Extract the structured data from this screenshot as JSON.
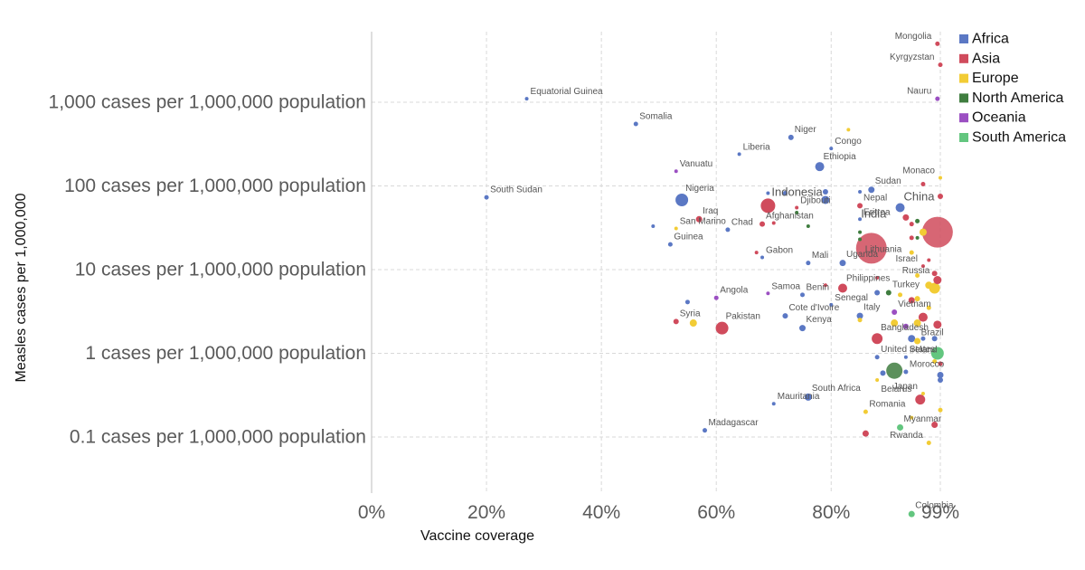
{
  "chart_data": {
    "type": "scatter",
    "title": "",
    "xlabel": "Vaccine coverage",
    "ylabel": "Measles cases per 1,000,000",
    "x_scale": "linear",
    "y_scale": "log",
    "xlim": [
      0,
      99
    ],
    "ylim": [
      0.006,
      6000
    ],
    "grid": true,
    "legend_position": "top-right",
    "x_ticks": [
      {
        "value": 0,
        "label": "0%"
      },
      {
        "value": 20,
        "label": "20%"
      },
      {
        "value": 40,
        "label": "40%"
      },
      {
        "value": 60,
        "label": "60%"
      },
      {
        "value": 80,
        "label": "80%"
      },
      {
        "value": 99,
        "label": "99%"
      }
    ],
    "y_ticks": [
      {
        "value": 0.1,
        "label": "0.1 cases per 1,000,000 population"
      },
      {
        "value": 1,
        "label": "1 cases per 1,000,000 population"
      },
      {
        "value": 10,
        "label": "10 cases per 1,000,000 population"
      },
      {
        "value": 100,
        "label": "100 cases per 1,000,000 population"
      },
      {
        "value": 1000,
        "label": "1,000 cases per 1,000,000 population"
      }
    ],
    "legend": [
      {
        "name": "Africa",
        "color": "#5b78c4"
      },
      {
        "name": "Asia",
        "color": "#d04b5c"
      },
      {
        "name": "Europe",
        "color": "#f2cc35"
      },
      {
        "name": "North America",
        "color": "#3f7d3f"
      },
      {
        "name": "Oceania",
        "color": "#9b4fc2"
      },
      {
        "name": "South America",
        "color": "#63c67f"
      }
    ],
    "points": [
      {
        "x": 98.5,
        "y": 5000,
        "r": 2.5,
        "region": "Asia",
        "label": "Mongolia"
      },
      {
        "x": 99,
        "y": 2800,
        "r": 2.5,
        "region": "Asia",
        "label": "Kyrgyzstan"
      },
      {
        "x": 98.5,
        "y": 1100,
        "r": 2.5,
        "region": "Oceania",
        "label": "Nauru"
      },
      {
        "x": 27,
        "y": 1100,
        "r": 2,
        "region": "Africa",
        "label": "Equatorial Guinea"
      },
      {
        "x": 46,
        "y": 550,
        "r": 2.5,
        "region": "Africa",
        "label": "Somalia"
      },
      {
        "x": 73,
        "y": 380,
        "r": 3,
        "region": "Africa",
        "label": "Niger"
      },
      {
        "x": 83,
        "y": 470,
        "r": 2,
        "region": "Europe",
        "label": ""
      },
      {
        "x": 80,
        "y": 280,
        "r": 2,
        "region": "Africa",
        "label": "Congo"
      },
      {
        "x": 64,
        "y": 240,
        "r": 2,
        "region": "Africa",
        "label": "Liberia"
      },
      {
        "x": 78,
        "y": 170,
        "r": 5,
        "region": "Africa",
        "label": "Ethiopia"
      },
      {
        "x": 53,
        "y": 150,
        "r": 2,
        "region": "Oceania",
        "label": "Vanuatu"
      },
      {
        "x": 99,
        "y": 125,
        "r": 2,
        "region": "Europe",
        "label": "Monaco"
      },
      {
        "x": 96,
        "y": 105,
        "r": 2.5,
        "region": "Asia",
        "label": ""
      },
      {
        "x": 87,
        "y": 90,
        "r": 3.5,
        "region": "Africa",
        "label": "Sudan"
      },
      {
        "x": 85,
        "y": 85,
        "r": 2,
        "region": "Africa",
        "label": ""
      },
      {
        "x": 99,
        "y": 75,
        "r": 3,
        "region": "Asia",
        "label": ""
      },
      {
        "x": 20,
        "y": 73,
        "r": 2.5,
        "region": "Africa",
        "label": "South Sudan"
      },
      {
        "x": 54,
        "y": 68,
        "r": 7,
        "region": "Africa",
        "label": "Nigeria"
      },
      {
        "x": 69,
        "y": 82,
        "r": 2,
        "region": "Africa",
        "label": ""
      },
      {
        "x": 69,
        "y": 58,
        "r": 8,
        "region": "Asia",
        "label": "Indonesia"
      },
      {
        "x": 72,
        "y": 82,
        "r": 2.5,
        "region": "Africa",
        "label": ""
      },
      {
        "x": 79,
        "y": 85,
        "r": 3,
        "region": "Africa",
        "label": ""
      },
      {
        "x": 79,
        "y": 68,
        "r": 4.5,
        "region": "Africa",
        "label": ""
      },
      {
        "x": 74,
        "y": 55,
        "r": 2,
        "region": "Asia",
        "label": "Djibouti"
      },
      {
        "x": 74,
        "y": 48,
        "r": 2,
        "region": "North America",
        "label": ""
      },
      {
        "x": 85,
        "y": 58,
        "r": 3,
        "region": "Asia",
        "label": "Nepal"
      },
      {
        "x": 92,
        "y": 55,
        "r": 5,
        "region": "Africa",
        "label": "China"
      },
      {
        "x": 98.5,
        "y": 28,
        "r": 17,
        "region": "Asia",
        "label": ""
      },
      {
        "x": 96,
        "y": 28,
        "r": 4,
        "region": "Europe",
        "label": ""
      },
      {
        "x": 93,
        "y": 42,
        "r": 3.5,
        "region": "Asia",
        "label": ""
      },
      {
        "x": 95,
        "y": 38,
        "r": 2.5,
        "region": "North America",
        "label": ""
      },
      {
        "x": 94,
        "y": 35,
        "r": 2.5,
        "region": "Asia",
        "label": ""
      },
      {
        "x": 85,
        "y": 40,
        "r": 2,
        "region": "Africa",
        "label": "Eritrea"
      },
      {
        "x": 57,
        "y": 40,
        "r": 3.5,
        "region": "Asia",
        "label": "Iraq"
      },
      {
        "x": 68,
        "y": 35,
        "r": 3,
        "region": "Asia",
        "label": "Afghanistan"
      },
      {
        "x": 70,
        "y": 36,
        "r": 2,
        "region": "Asia",
        "label": ""
      },
      {
        "x": 49,
        "y": 33,
        "r": 2,
        "region": "Africa",
        "label": ""
      },
      {
        "x": 53,
        "y": 31,
        "r": 2,
        "region": "Europe",
        "label": "San Marino"
      },
      {
        "x": 62,
        "y": 30,
        "r": 2.5,
        "region": "Africa",
        "label": "Chad"
      },
      {
        "x": 76,
        "y": 33,
        "r": 2,
        "region": "North America",
        "label": ""
      },
      {
        "x": 85,
        "y": 28,
        "r": 2,
        "region": "North America",
        "label": ""
      },
      {
        "x": 87,
        "y": 18,
        "r": 17,
        "region": "Asia",
        "label": ""
      },
      {
        "x": 94,
        "y": 24,
        "r": 2.5,
        "region": "Asia",
        "label": ""
      },
      {
        "x": 95,
        "y": 24,
        "r": 2,
        "region": "North America",
        "label": ""
      },
      {
        "x": 85,
        "y": 23,
        "r": 2,
        "region": "North America",
        "label": ""
      },
      {
        "x": 52,
        "y": 20,
        "r": 2.5,
        "region": "Africa",
        "label": "Guinea"
      },
      {
        "x": 67,
        "y": 16,
        "r": 2,
        "region": "Asia",
        "label": ""
      },
      {
        "x": 68,
        "y": 14,
        "r": 2,
        "region": "Africa",
        "label": "Gabon"
      },
      {
        "x": 76,
        "y": 12,
        "r": 2.5,
        "region": "Africa",
        "label": "Mali"
      },
      {
        "x": 82,
        "y": 12,
        "r": 3.5,
        "region": "Africa",
        "label": "Uganda"
      },
      {
        "x": 94,
        "y": 16,
        "r": 2.5,
        "region": "Europe",
        "label": ""
      },
      {
        "x": 97,
        "y": 13,
        "r": 2,
        "region": "Asia",
        "label": ""
      },
      {
        "x": 96,
        "y": 11,
        "r": 2,
        "region": "Asia",
        "label": "Israel"
      },
      {
        "x": 98,
        "y": 9,
        "r": 3,
        "region": "Asia",
        "label": ""
      },
      {
        "x": 95,
        "y": 8.5,
        "r": 2.5,
        "region": "Europe",
        "label": ""
      },
      {
        "x": 98.5,
        "y": 7.5,
        "r": 4.5,
        "region": "Asia",
        "label": "Russia"
      },
      {
        "x": 98,
        "y": 6,
        "r": 6,
        "region": "Europe",
        "label": ""
      },
      {
        "x": 97,
        "y": 6.5,
        "r": 4,
        "region": "Europe",
        "label": ""
      },
      {
        "x": 82,
        "y": 6,
        "r": 5,
        "region": "Asia",
        "label": "Philippines"
      },
      {
        "x": 88,
        "y": 8,
        "r": 2,
        "region": "Asia",
        "label": ""
      },
      {
        "x": 79,
        "y": 6.5,
        "r": 2,
        "region": "Asia",
        "label": ""
      },
      {
        "x": 69,
        "y": 5.2,
        "r": 2,
        "region": "Oceania",
        "label": "Samoa"
      },
      {
        "x": 75,
        "y": 5,
        "r": 2.5,
        "region": "Africa",
        "label": "Benin"
      },
      {
        "x": 88,
        "y": 5.3,
        "r": 3,
        "region": "Africa",
        "label": ""
      },
      {
        "x": 90,
        "y": 5.3,
        "r": 3,
        "region": "North America",
        "label": "Turkey"
      },
      {
        "x": 92,
        "y": 5,
        "r": 2.5,
        "region": "Europe",
        "label": ""
      },
      {
        "x": 94,
        "y": 4.3,
        "r": 3.5,
        "region": "Asia",
        "label": ""
      },
      {
        "x": 95,
        "y": 4.5,
        "r": 3,
        "region": "Europe",
        "label": ""
      },
      {
        "x": 97,
        "y": 3.5,
        "r": 2.5,
        "region": "Europe",
        "label": ""
      },
      {
        "x": 60,
        "y": 4.6,
        "r": 2.5,
        "region": "Oceania",
        "label": "Angola"
      },
      {
        "x": 55,
        "y": 4.1,
        "r": 2.5,
        "region": "Africa",
        "label": ""
      },
      {
        "x": 80,
        "y": 3.8,
        "r": 2,
        "region": "Africa",
        "label": "Senegal"
      },
      {
        "x": 72,
        "y": 2.8,
        "r": 3,
        "region": "Africa",
        "label": "Cote d'Ivoire"
      },
      {
        "x": 85,
        "y": 2.8,
        "r": 3.5,
        "region": "Africa",
        "label": "Italy"
      },
      {
        "x": 85,
        "y": 2.5,
        "r": 2.5,
        "region": "Europe",
        "label": ""
      },
      {
        "x": 91,
        "y": 3.1,
        "r": 3,
        "region": "Oceania",
        "label": "Vietnam"
      },
      {
        "x": 96,
        "y": 2.7,
        "r": 5,
        "region": "Asia",
        "label": ""
      },
      {
        "x": 98.5,
        "y": 2.2,
        "r": 4.5,
        "region": "Asia",
        "label": ""
      },
      {
        "x": 95,
        "y": 2.3,
        "r": 4,
        "region": "Europe",
        "label": ""
      },
      {
        "x": 91,
        "y": 2.3,
        "r": 4,
        "region": "Europe",
        "label": ""
      },
      {
        "x": 93,
        "y": 2.1,
        "r": 3,
        "region": "Oceania",
        "label": ""
      },
      {
        "x": 53,
        "y": 2.4,
        "r": 3,
        "region": "Asia",
        "label": "Syria"
      },
      {
        "x": 56,
        "y": 2.3,
        "r": 4,
        "region": "Europe",
        "label": ""
      },
      {
        "x": 61,
        "y": 2.0,
        "r": 7,
        "region": "Asia",
        "label": "Pakistan"
      },
      {
        "x": 75,
        "y": 2.0,
        "r": 3.5,
        "region": "Africa",
        "label": "Kenya"
      },
      {
        "x": 88,
        "y": 1.5,
        "r": 6,
        "region": "Asia",
        "label": "Bangladesh"
      },
      {
        "x": 94,
        "y": 1.5,
        "r": 4,
        "region": "Africa",
        "label": ""
      },
      {
        "x": 96,
        "y": 1.5,
        "r": 2.5,
        "region": "Africa",
        "label": ""
      },
      {
        "x": 95,
        "y": 1.4,
        "r": 3.5,
        "region": "Europe",
        "label": "Brazil"
      },
      {
        "x": 98,
        "y": 1.5,
        "r": 3,
        "region": "Africa",
        "label": ""
      },
      {
        "x": 98.5,
        "y": 1.0,
        "r": 7,
        "region": "South America",
        "label": ""
      },
      {
        "x": 93,
        "y": 0.9,
        "r": 2,
        "region": "Africa",
        "label": "Ireland"
      },
      {
        "x": 88,
        "y": 0.9,
        "r": 2.5,
        "region": "Africa",
        "label": "United States"
      },
      {
        "x": 98,
        "y": 0.8,
        "r": 2.5,
        "region": "Europe",
        "label": ""
      },
      {
        "x": 99,
        "y": 0.75,
        "r": 2.5,
        "region": "Asia",
        "label": ""
      },
      {
        "x": 91,
        "y": 0.62,
        "r": 9,
        "region": "North America",
        "label": ""
      },
      {
        "x": 89,
        "y": 0.58,
        "r": 3,
        "region": "Africa",
        "label": ""
      },
      {
        "x": 93,
        "y": 0.6,
        "r": 2.5,
        "region": "Africa",
        "label": "Morocco"
      },
      {
        "x": 99,
        "y": 0.55,
        "r": 3.5,
        "region": "Africa",
        "label": ""
      },
      {
        "x": 99,
        "y": 0.48,
        "r": 3,
        "region": "Africa",
        "label": ""
      },
      {
        "x": 88,
        "y": 0.48,
        "r": 2,
        "region": "Europe",
        "label": ""
      },
      {
        "x": 96,
        "y": 0.33,
        "r": 2,
        "region": "Europe",
        "label": "Japan"
      },
      {
        "x": 95.5,
        "y": 0.28,
        "r": 5.5,
        "region": "Asia",
        "label": "Belarus"
      },
      {
        "x": 76,
        "y": 0.3,
        "r": 4,
        "region": "Africa",
        "label": "South Africa"
      },
      {
        "x": 70,
        "y": 0.25,
        "r": 2,
        "region": "Africa",
        "label": "Mauritania"
      },
      {
        "x": 86,
        "y": 0.2,
        "r": 2.5,
        "region": "Europe",
        "label": "Romania"
      },
      {
        "x": 99,
        "y": 0.21,
        "r": 2.5,
        "region": "Europe",
        "label": ""
      },
      {
        "x": 94,
        "y": 0.17,
        "r": 2,
        "region": "Europe",
        "label": ""
      },
      {
        "x": 98,
        "y": 0.14,
        "r": 3.5,
        "region": "Asia",
        "label": ""
      },
      {
        "x": 92,
        "y": 0.13,
        "r": 3.5,
        "region": "South America",
        "label": "Myanmar"
      },
      {
        "x": 86,
        "y": 0.11,
        "r": 3.5,
        "region": "Asia",
        "label": ""
      },
      {
        "x": 58,
        "y": 0.12,
        "r": 2.5,
        "region": "Africa",
        "label": "Madagascar"
      },
      {
        "x": 97,
        "y": 0.085,
        "r": 2.5,
        "region": "Europe",
        "label": "Rwanda"
      },
      {
        "x": 94,
        "y": 0.012,
        "r": 3.5,
        "region": "South America",
        "label": "Colombia"
      }
    ],
    "annotations": [
      {
        "text": "India",
        "anchor_label": "India",
        "x": 85.5,
        "y": 36
      },
      {
        "text": "Lithuania",
        "x": 87,
        "y": 18
      },
      {
        "text": "China",
        "x": 93,
        "y": 55
      }
    ]
  }
}
